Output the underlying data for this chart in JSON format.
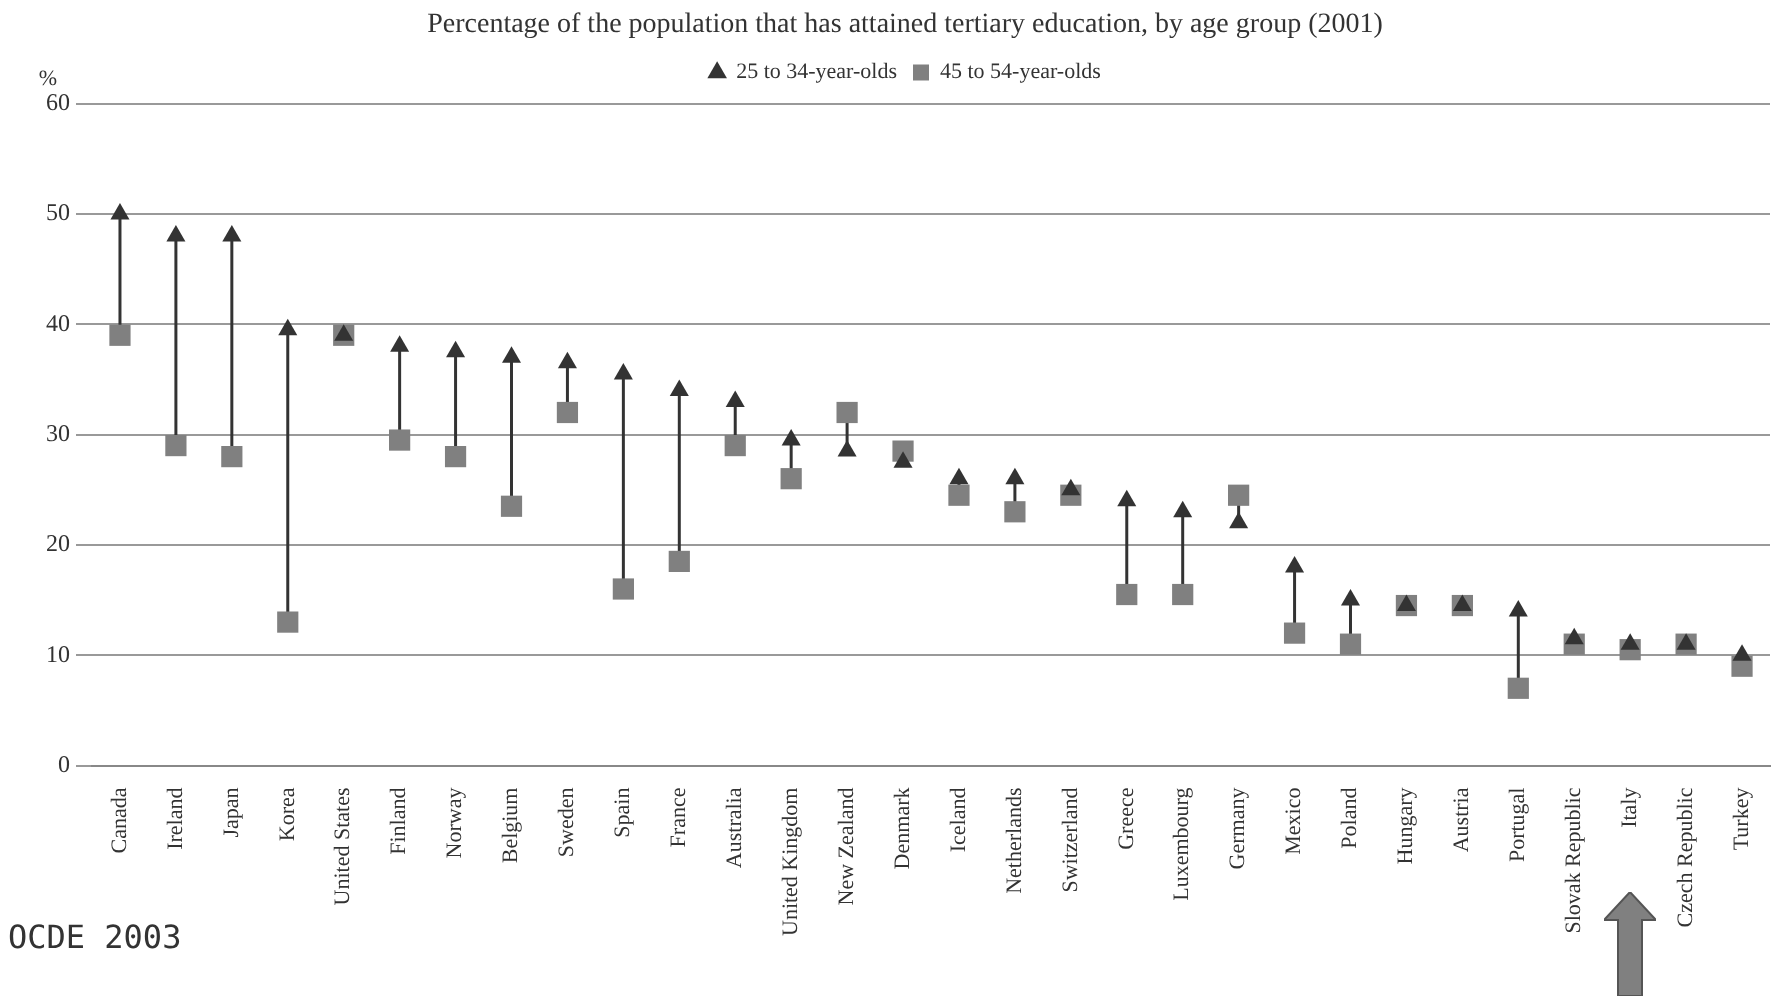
{
  "chart_data": {
    "type": "scatter",
    "title": "Percentage of the population that has attained tertiary education, by age group (2001)",
    "ylabel": "%",
    "categories": [
      "Canada",
      "Ireland",
      "Japan",
      "Korea",
      "United States",
      "Finland",
      "Norway",
      "Belgium",
      "Sweden",
      "Spain",
      "France",
      "Australia",
      "United Kingdom",
      "New Zealand",
      "Denmark",
      "Iceland",
      "Netherlands",
      "Switzerland",
      "Greece",
      "Luxembourg",
      "Germany",
      "Mexico",
      "Poland",
      "Hungary",
      "Austria",
      "Portugal",
      "Slovak Republic",
      "Italy",
      "Czech Republic",
      "Turkey"
    ],
    "series": [
      {
        "name": "25 to 34-year-olds",
        "color": "#333333",
        "marker": "triangle",
        "values": [
          50,
          48,
          48,
          39.5,
          39,
          38,
          37.5,
          37,
          36.5,
          35.5,
          34,
          33,
          29.5,
          28.5,
          27.5,
          26,
          26,
          25,
          24,
          23,
          22,
          18,
          15,
          14.5,
          14.5,
          14,
          11.5,
          11,
          11,
          10
        ]
      },
      {
        "name": "45 to 54-year-olds",
        "color": "#808080",
        "marker": "square",
        "values": [
          39,
          29,
          28,
          13,
          39,
          29.5,
          28,
          23.5,
          32,
          16,
          18.5,
          29,
          26,
          32,
          28.5,
          24.5,
          23,
          24.5,
          15.5,
          15.5,
          24.5,
          12,
          11,
          14.5,
          14.5,
          7,
          11,
          10.5,
          11,
          9
        ]
      }
    ],
    "ylim": [
      0,
      60
    ],
    "yticks": [
      0,
      10,
      20,
      30,
      40,
      50,
      60
    ],
    "grid": "y",
    "legend": "top",
    "annotations": [
      "OCDE 2003"
    ]
  }
}
